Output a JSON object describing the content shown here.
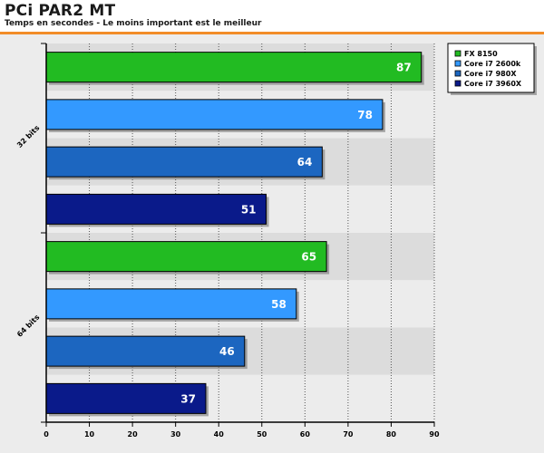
{
  "header": {
    "title": "PCi PAR2 MT",
    "subtitle": "Temps en secondes - Le moins important est le meilleur"
  },
  "chart_data": {
    "type": "bar",
    "orientation": "horizontal",
    "categories": [
      "32 bits",
      "64 bits"
    ],
    "series": [
      {
        "name": "FX 8150",
        "color": "#22bb22",
        "values": [
          87,
          65
        ]
      },
      {
        "name": "Core i7 2600k",
        "color": "#3399ff",
        "values": [
          78,
          58
        ]
      },
      {
        "name": "Core i7 980X",
        "color": "#1c66c0",
        "values": [
          64,
          46
        ]
      },
      {
        "name": "Core i7 3960X",
        "color": "#0a1a8a",
        "values": [
          51,
          37
        ]
      }
    ],
    "title": "PCi PAR2 MT",
    "subtitle": "Temps en secondes - Le moins important est le meilleur",
    "xlim": [
      0,
      90
    ],
    "xticks": [
      0,
      10,
      20,
      30,
      40,
      50,
      60,
      70,
      80,
      90
    ],
    "grid": true,
    "legend_position": "top-right"
  },
  "colors": {
    "accent": "#f28c28"
  }
}
